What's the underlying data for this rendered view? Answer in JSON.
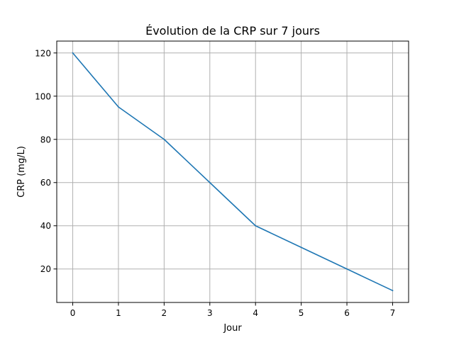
{
  "chart_data": {
    "type": "line",
    "title": "Évolution de la CRP sur 7 jours",
    "xlabel": "Jour",
    "ylabel": "CRP (mg/L)",
    "x": [
      0,
      1,
      2,
      3,
      4,
      5,
      6,
      7
    ],
    "series": [
      {
        "values": [
          120,
          95,
          80,
          60,
          40,
          30,
          20,
          10
        ],
        "color": "#1f77b4"
      }
    ],
    "xlim": [
      -0.35,
      7.35
    ],
    "ylim": [
      4.5,
      125.5
    ],
    "xticks": [
      0,
      1,
      2,
      3,
      4,
      5,
      6,
      7
    ],
    "yticks": [
      20,
      40,
      60,
      80,
      100,
      120
    ],
    "grid": true
  }
}
